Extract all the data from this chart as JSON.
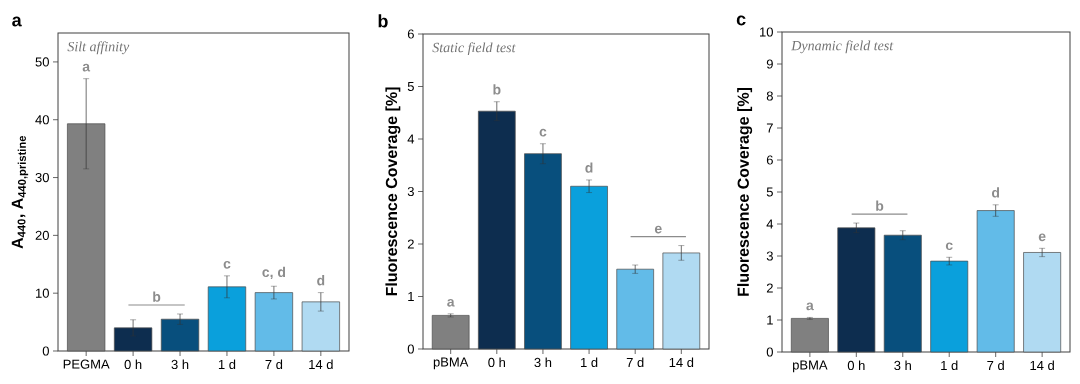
{
  "chart_data": [
    {
      "type": "bar",
      "title": "a",
      "subtitle": "Silt affinity",
      "ylabel": "\\text{\\bfseries A}_{\\text{\\bfseries 440}}\\text{\\bfseries , A}_{\\text{\\bfseries 440,pristine}}",
      "categories": [
        "PEGMA",
        "0 h",
        "3 h",
        "1 d",
        "7 d",
        "14 d"
      ],
      "values": [
        39.3,
        4.0,
        5.5,
        11.1,
        10.1,
        8.5
      ],
      "errors": [
        7.8,
        1.4,
        0.9,
        1.9,
        1.1,
        1.6
      ],
      "colors": [
        "#808080",
        "#0d2d4f",
        "#084f7d",
        "#0aa0dc",
        "#62bbe8",
        "#b0daf2"
      ],
      "ylim": [
        0,
        55
      ],
      "yticks": [
        0,
        10,
        20,
        30,
        40,
        50
      ],
      "annotations": [
        {
          "text": "a",
          "x": "PEGMA",
          "y": 47.1
        },
        {
          "text": "b",
          "x": "0 h",
          "y": 5.4
        },
        {
          "text": "c",
          "x": "1 d",
          "y": 13.0
        },
        {
          "text": "c, d",
          "x": "7 d",
          "y": 11.2
        },
        {
          "text": "d",
          "x": "14 d",
          "y": 10.1
        }
      ]
    },
    {
      "type": "bar",
      "title": "b",
      "subtitle": "Static field test",
      "ylabel": "Fluorescence Coverage [%]",
      "categories": [
        "pBMA",
        "0 h",
        "3 h",
        "1 d",
        "7 d",
        "14 d"
      ],
      "values": [
        0.64,
        4.53,
        3.72,
        3.1,
        1.52,
        1.83
      ],
      "errors": [
        0.03,
        0.18,
        0.19,
        0.12,
        0.08,
        0.14
      ],
      "colors": [
        "#808080",
        "#0d2d4f",
        "#084f7d",
        "#0aa0dc",
        "#62bbe8",
        "#b0daf2"
      ],
      "ylim": [
        0,
        6
      ],
      "yticks": [
        0,
        1,
        2,
        3,
        4,
        5,
        6
      ],
      "annotations": [
        {
          "text": "a",
          "x": "pBMA",
          "y": 0.67
        },
        {
          "text": "b",
          "x": "0 h",
          "y": 4.71
        },
        {
          "text": "c",
          "x": "3 h",
          "y": 3.91
        },
        {
          "text": "d",
          "x": "1 d",
          "y": 3.22
        },
        {
          "text": "e",
          "x": "7 d",
          "y": 1.6
        }
      ]
    },
    {
      "type": "bar",
      "title": "c",
      "subtitle": "Dynamic field test",
      "ylabel": "Fluorescence Coverage [%]",
      "categories": [
        "pBMA",
        "0 h",
        "3 h",
        "1 d",
        "7 d",
        "14 d"
      ],
      "values": [
        1.05,
        3.88,
        3.65,
        2.84,
        4.42,
        3.11
      ],
      "errors": [
        0.03,
        0.15,
        0.14,
        0.12,
        0.18,
        0.13
      ],
      "colors": [
        "#808080",
        "#0d2d4f",
        "#084f7d",
        "#0aa0dc",
        "#62bbe8",
        "#b0daf2"
      ],
      "ylim": [
        0,
        10
      ],
      "yticks": [
        0,
        1,
        2,
        3,
        4,
        5,
        6,
        7,
        8,
        9,
        10
      ],
      "annotations": [
        {
          "text": "a",
          "x": "pBMA",
          "y": 1.08
        },
        {
          "text": "b",
          "x": "0 h",
          "y": 4.03
        },
        {
          "text": "c",
          "x": "1 d",
          "y": 2.96
        },
        {
          "text": "d",
          "x": "7 d",
          "y": 4.6
        },
        {
          "text": "e",
          "x": "14 d",
          "y": 3.24
        }
      ]
    }
  ]
}
